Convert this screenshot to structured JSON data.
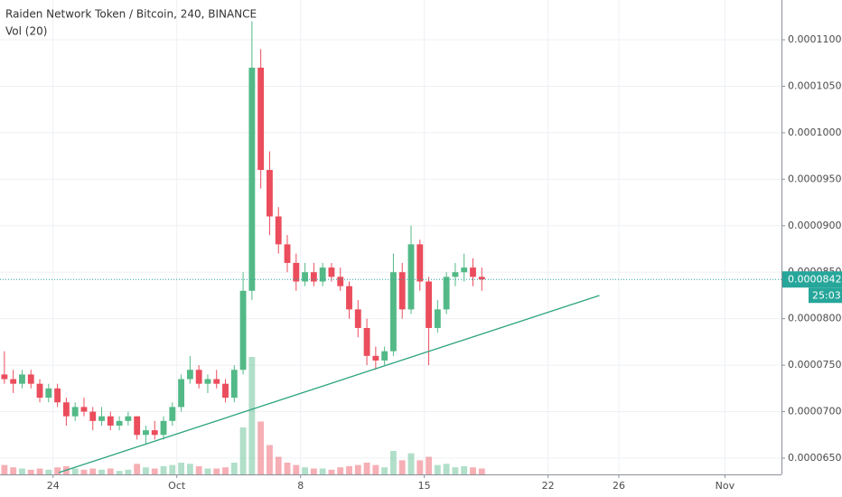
{
  "chart_data": {
    "type": "candlestick",
    "title": "Raiden Network Token / Bitcoin, 240, BINANCE",
    "subtitle": "Vol (20)",
    "up_color": "#53b987",
    "down_color": "#eb4d5c",
    "x": [
      0.25,
      0.75,
      1.25,
      1.75,
      2.25,
      2.75,
      3.25,
      3.75,
      4.25,
      4.75,
      5.25,
      5.75,
      6.25,
      6.75,
      7.25,
      7.75,
      8.25,
      8.75,
      9.25,
      9.75,
      10.25,
      10.75,
      11.25,
      11.75,
      12.25,
      12.75,
      13.25,
      13.75,
      14.25,
      14.75,
      15.25,
      15.75,
      16.25,
      16.75,
      17.25,
      17.75,
      18.25,
      18.75,
      19.25,
      19.75,
      20.25,
      20.75,
      21.25,
      21.75,
      22.25,
      22.75,
      23.25,
      23.75,
      24.25,
      24.75,
      25.25,
      25.75,
      26.25,
      26.75,
      27.25
    ],
    "open": [
      7.4e-05,
      7.35e-05,
      7.3e-05,
      7.4e-05,
      7.3e-05,
      7.15e-05,
      7.25e-05,
      7.1e-05,
      6.95e-05,
      7.05e-05,
      7e-05,
      6.9e-05,
      6.95e-05,
      6.85e-05,
      6.9e-05,
      6.95e-05,
      6.75e-05,
      6.8e-05,
      6.75e-05,
      6.9e-05,
      7.05e-05,
      7.35e-05,
      7.45e-05,
      7.3e-05,
      7.35e-05,
      7.3e-05,
      7.15e-05,
      7.45e-05,
      8.3e-05,
      0.000107,
      9.6e-05,
      9.1e-05,
      8.8e-05,
      8.6e-05,
      8.4e-05,
      8.5e-05,
      8.4e-05,
      8.55e-05,
      8.45e-05,
      8.35e-05,
      8.1e-05,
      7.9e-05,
      7.6e-05,
      7.55e-05,
      7.65e-05,
      8.5e-05,
      8.1e-05,
      8.8e-05,
      8.4e-05,
      7.9e-05,
      8.1e-05,
      8.45e-05,
      8.5e-05,
      8.55e-05,
      8.45e-05
    ],
    "high": [
      7.65e-05,
      7.45e-05,
      7.45e-05,
      7.45e-05,
      7.35e-05,
      7.3e-05,
      7.3e-05,
      7.15e-05,
      7.1e-05,
      7.15e-05,
      7.05e-05,
      7.05e-05,
      7e-05,
      6.95e-05,
      7e-05,
      6.95e-05,
      6.85e-05,
      6.9e-05,
      6.95e-05,
      7.1e-05,
      7.4e-05,
      7.6e-05,
      7.5e-05,
      7.4e-05,
      7.45e-05,
      7.35e-05,
      7.5e-05,
      8.5e-05,
      0.000112,
      0.000109,
      9.8e-05,
      9.2e-05,
      8.9e-05,
      8.7e-05,
      8.6e-05,
      8.6e-05,
      8.6e-05,
      8.6e-05,
      8.55e-05,
      8.4e-05,
      8.2e-05,
      8e-05,
      7.7e-05,
      7.7e-05,
      8.7e-05,
      8.6e-05,
      9e-05,
      8.85e-05,
      8.45e-05,
      8.2e-05,
      8.5e-05,
      8.6e-05,
      8.7e-05,
      8.65e-05,
      8.55e-05
    ],
    "low": [
      7.3e-05,
      7.2e-05,
      7.25e-05,
      7.25e-05,
      7.1e-05,
      7.1e-05,
      7.05e-05,
      6.85e-05,
      6.9e-05,
      6.95e-05,
      6.8e-05,
      6.85e-05,
      6.8e-05,
      6.8e-05,
      6.85e-05,
      6.7e-05,
      6.65e-05,
      6.7e-05,
      6.7e-05,
      6.85e-05,
      7e-05,
      7.3e-05,
      7.25e-05,
      7.2e-05,
      7.25e-05,
      7.1e-05,
      7.1e-05,
      7.4e-05,
      8.2e-05,
      9.4e-05,
      8.9e-05,
      8.7e-05,
      8.5e-05,
      8.3e-05,
      8.35e-05,
      8.35e-05,
      8.35e-05,
      8.4e-05,
      8.3e-05,
      8e-05,
      7.8e-05,
      7.5e-05,
      7.45e-05,
      7.5e-05,
      7.6e-05,
      8e-05,
      8.05e-05,
      8.3e-05,
      7.5e-05,
      7.85e-05,
      8.05e-05,
      8.35e-05,
      8.4e-05,
      8.35e-05,
      8.3e-05
    ],
    "close": [
      7.35e-05,
      7.3e-05,
      7.4e-05,
      7.3e-05,
      7.15e-05,
      7.25e-05,
      7.1e-05,
      6.95e-05,
      7.05e-05,
      7e-05,
      6.9e-05,
      6.95e-05,
      6.85e-05,
      6.9e-05,
      6.95e-05,
      6.75e-05,
      6.8e-05,
      6.75e-05,
      6.9e-05,
      7.05e-05,
      7.35e-05,
      7.45e-05,
      7.3e-05,
      7.35e-05,
      7.3e-05,
      7.15e-05,
      7.45e-05,
      8.3e-05,
      0.000107,
      9.6e-05,
      9.1e-05,
      8.8e-05,
      8.6e-05,
      8.4e-05,
      8.5e-05,
      8.4e-05,
      8.55e-05,
      8.45e-05,
      8.35e-05,
      8.1e-05,
      7.9e-05,
      7.6e-05,
      7.55e-05,
      7.65e-05,
      8.5e-05,
      8.1e-05,
      8.8e-05,
      8.4e-05,
      7.9e-05,
      8.1e-05,
      8.45e-05,
      8.5e-05,
      8.55e-05,
      8.45e-05,
      8.422e-05
    ],
    "volume": [
      8,
      6,
      5,
      4,
      5,
      4,
      6,
      7,
      5,
      4,
      5,
      4,
      5,
      3,
      4,
      9,
      6,
      5,
      7,
      8,
      10,
      9,
      7,
      5,
      5,
      6,
      10,
      40,
      100,
      45,
      25,
      15,
      10,
      8,
      6,
      5,
      5,
      4,
      6,
      7,
      8,
      10,
      8,
      6,
      20,
      12,
      18,
      12,
      15,
      8,
      9,
      6,
      7,
      6,
      5
    ],
    "last_price": 8.422e-05,
    "countdown": "25:03",
    "trendline": {
      "x": [
        3.32,
        33.9
      ],
      "y": [
        6.344e-05,
        8.25e-05
      ],
      "color": "#2ba37e"
    },
    "xlim": [
      0,
      44.2
    ],
    "xticks": [
      {
        "value": 3,
        "label": "24"
      },
      {
        "value": 10,
        "label": "Oct"
      },
      {
        "value": 17,
        "label": "8"
      },
      {
        "value": 24,
        "label": "15"
      },
      {
        "value": 31,
        "label": "22"
      },
      {
        "value": 35,
        "label": "26"
      },
      {
        "value": 41,
        "label": "Nov"
      }
    ],
    "ylim": [
      6.325e-05,
      0.00011428
    ],
    "yticks": [
      {
        "value": 6.5e-05,
        "label": "0.00006500"
      },
      {
        "value": 7e-05,
        "label": "0.00007000"
      },
      {
        "value": 7.5e-05,
        "label": "0.00007500"
      },
      {
        "value": 8e-05,
        "label": "0.00008000"
      },
      {
        "value": 8.5e-05,
        "label": "0.00008500"
      },
      {
        "value": 9e-05,
        "label": "0.00009000"
      },
      {
        "value": 9.5e-05,
        "label": "0.00009500"
      },
      {
        "value": 0.0001,
        "label": "0.00010000"
      },
      {
        "value": 0.000105,
        "label": "0.00010500"
      },
      {
        "value": 0.00011,
        "label": "0.00011000"
      }
    ],
    "grid": true
  }
}
